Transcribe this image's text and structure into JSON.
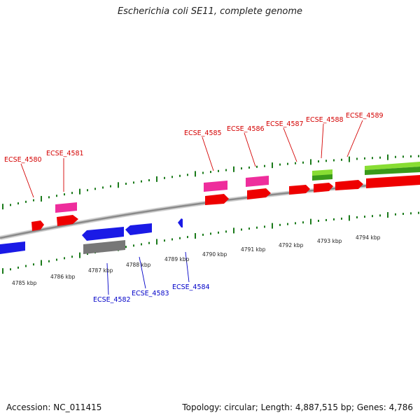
{
  "title": "Escherichia coli SE11, complete genome",
  "footer": {
    "accession": "Accession: NC_011415",
    "stats": "Topology: circular; Length: 4,887,515 bp; Genes: 4,786"
  },
  "colors": {
    "forward_cds": "#ee0000",
    "forward_pink": "#ee2d9c",
    "forward_green": "#66cc22",
    "reverse_cds": "#1a1ae6",
    "reverse_gray": "#777777",
    "tick": "#1a7a1a",
    "backbone": "#8a8a8a",
    "label_forward": "#d40000",
    "label_reverse": "#0000c8"
  },
  "kbp_labels": [
    "4785 kbp",
    "4786 kbp",
    "4787 kbp",
    "4788 kbp",
    "4789 kbp",
    "4790 kbp",
    "4791 kbp",
    "4792 kbp",
    "4793 kbp",
    "4794 kbp"
  ],
  "gene_labels_forward": [
    "ECSE_4580",
    "ECSE_4581",
    "ECSE_4585",
    "ECSE_4586",
    "ECSE_4587",
    "ECSE_4588",
    "ECSE_4589"
  ],
  "gene_labels_reverse": [
    "ECSE_4582",
    "ECSE_4583",
    "ECSE_4584"
  ]
}
